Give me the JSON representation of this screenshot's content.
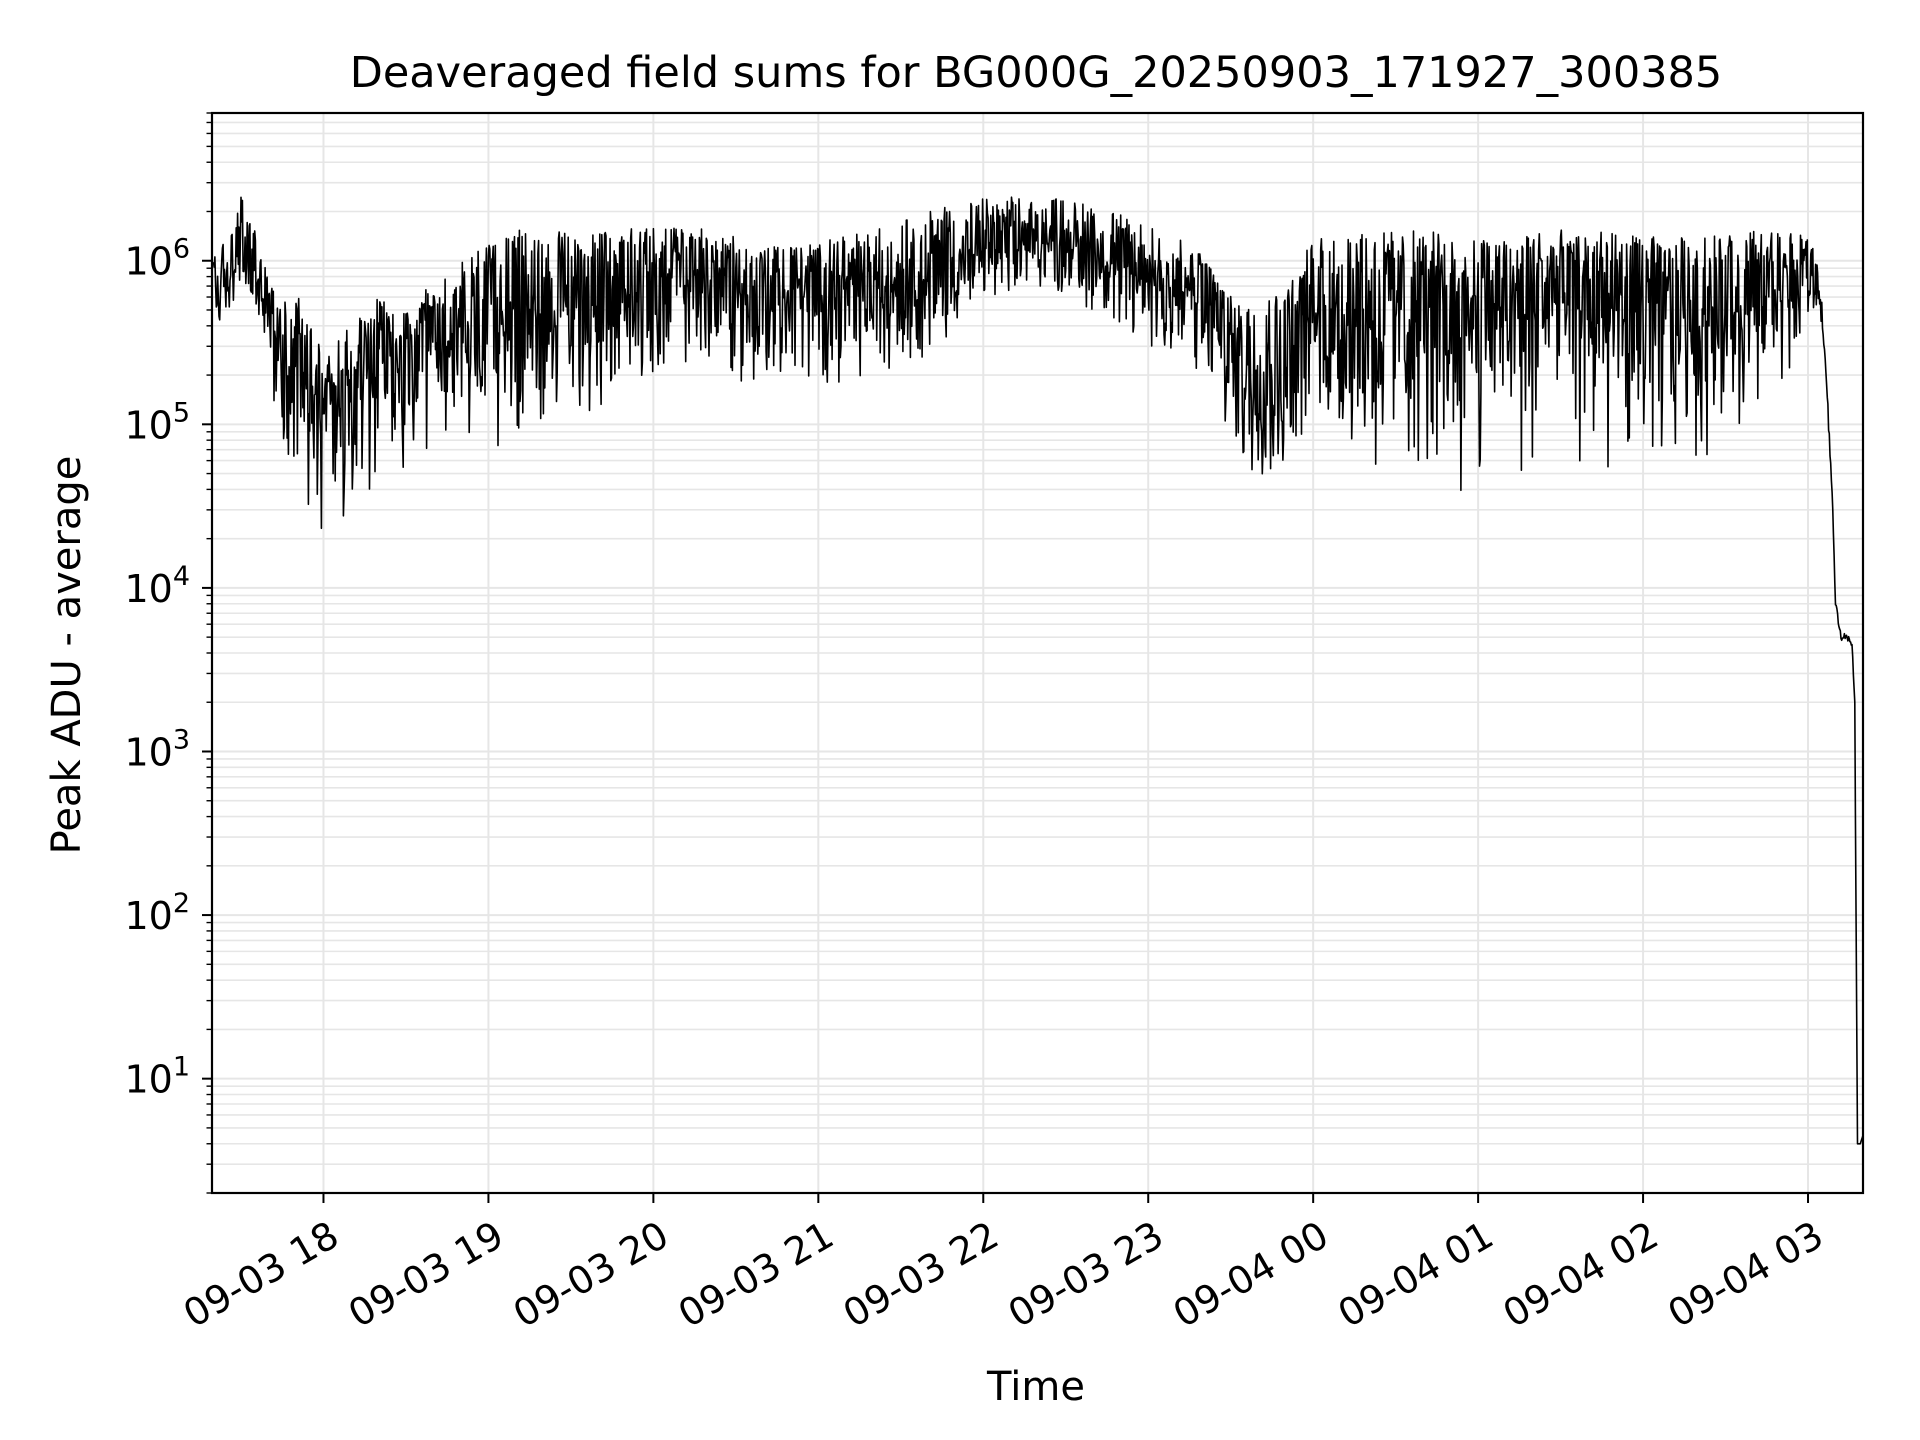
{
  "chart_data": {
    "type": "line",
    "title": "Deaveraged field sums for BG000G_20250903_171927_300385",
    "xlabel": "Time",
    "ylabel": "Peak ADU - average",
    "yscale": "log",
    "ylim": [
      2,
      8000000
    ],
    "xlim": [
      "2025-09-03 17:19:27",
      "2025-09-04 03:20:00"
    ],
    "grid": true,
    "line_color": "#000000",
    "grid_color": "#e6e6e6",
    "x_ticks": [
      {
        "value": "2025-09-03 18:00",
        "label": "09-03 18"
      },
      {
        "value": "2025-09-03 19:00",
        "label": "09-03 19"
      },
      {
        "value": "2025-09-03 20:00",
        "label": "09-03 20"
      },
      {
        "value": "2025-09-03 21:00",
        "label": "09-03 21"
      },
      {
        "value": "2025-09-03 22:00",
        "label": "09-03 22"
      },
      {
        "value": "2025-09-03 23:00",
        "label": "09-03 23"
      },
      {
        "value": "2025-09-04 00:00",
        "label": "09-04 00"
      },
      {
        "value": "2025-09-04 01:00",
        "label": "09-04 01"
      },
      {
        "value": "2025-09-04 02:00",
        "label": "09-04 02"
      },
      {
        "value": "2025-09-04 03:00",
        "label": "09-04 03"
      }
    ],
    "y_ticks": [
      {
        "value": 10,
        "base": "10",
        "exp": "1"
      },
      {
        "value": 100,
        "base": "10",
        "exp": "2"
      },
      {
        "value": 1000,
        "base": "10",
        "exp": "3"
      },
      {
        "value": 10000,
        "base": "10",
        "exp": "4"
      },
      {
        "value": 100000,
        "base": "10",
        "exp": "5"
      },
      {
        "value": 1000000,
        "base": "10",
        "exp": "6"
      }
    ],
    "series": [
      {
        "x": [
          "2025-09-03 17:20",
          "2025-09-03 17:25",
          "2025-09-03 17:30",
          "2025-09-03 17:35",
          "2025-09-03 17:40",
          "2025-09-03 17:45",
          "2025-09-03 17:50",
          "2025-09-03 17:55",
          "2025-09-03 18:00",
          "2025-09-03 18:10",
          "2025-09-03 18:20",
          "2025-09-03 18:30",
          "2025-09-03 18:40",
          "2025-09-03 18:50",
          "2025-09-03 19:00",
          "2025-09-03 19:10",
          "2025-09-03 19:20",
          "2025-09-03 19:40",
          "2025-09-03 20:00",
          "2025-09-03 20:20",
          "2025-09-03 20:40",
          "2025-09-03 21:00",
          "2025-09-03 21:20",
          "2025-09-03 21:40",
          "2025-09-03 22:00",
          "2025-09-03 22:20",
          "2025-09-03 22:40",
          "2025-09-03 23:00",
          "2025-09-03 23:10",
          "2025-09-03 23:20",
          "2025-09-03 23:30",
          "2025-09-03 23:40",
          "2025-09-03 23:50",
          "2025-09-04 00:00",
          "2025-09-04 00:20",
          "2025-09-04 00:40",
          "2025-09-04 01:00",
          "2025-09-04 01:20",
          "2025-09-04 01:40",
          "2025-09-04 02:00",
          "2025-09-04 02:20",
          "2025-09-04 02:40",
          "2025-09-04 02:55",
          "2025-09-04 03:00",
          "2025-09-04 03:03",
          "2025-09-04 03:05",
          "2025-09-04 03:07",
          "2025-09-04 03:09",
          "2025-09-04 03:10",
          "2025-09-04 03:12",
          "2025-09-04 03:14",
          "2025-09-04 03:16",
          "2025-09-04 03:17",
          "2025-09-04 03:18",
          "2025-09-04 03:19",
          "2025-09-04 03:20"
        ],
        "y": [
          700000,
          800000,
          1000000,
          900000,
          500000,
          300000,
          250000,
          200000,
          150000,
          200000,
          250000,
          220000,
          300000,
          350000,
          450000,
          550000,
          500000,
          600000,
          700000,
          800000,
          600000,
          650000,
          700000,
          800000,
          1200000,
          1400000,
          1100000,
          750000,
          700000,
          600000,
          300000,
          220000,
          250000,
          450000,
          500000,
          550000,
          450000,
          600000,
          550000,
          500000,
          500000,
          550000,
          800000,
          900000,
          800000,
          500000,
          150000,
          30000,
          8000,
          5000,
          5000,
          4500,
          2000,
          4,
          4,
          4.5
        ],
        "spread_low": [
          0.5,
          0.55,
          0.7,
          0.6,
          0.4,
          0.25,
          0.2,
          0.15,
          0.12,
          0.15,
          0.18,
          0.15,
          0.15,
          0.12,
          0.15,
          0.15,
          0.2,
          0.2,
          0.3,
          0.3,
          0.25,
          0.25,
          0.3,
          0.3,
          0.5,
          0.5,
          0.45,
          0.4,
          0.35,
          0.3,
          0.2,
          0.2,
          0.2,
          0.1,
          0.08,
          0.08,
          0.06,
          0.08,
          0.08,
          0.1,
          0.12,
          0.15,
          0.3,
          0.5,
          0.6,
          0.8,
          0.9,
          0.95,
          0.95,
          0.95,
          0.95,
          0.95,
          1,
          1,
          1,
          1
        ],
        "spread_high": [
          1.8,
          1.6,
          2.5,
          1.8,
          1.6,
          1.7,
          3,
          2,
          1.8,
          2,
          2.5,
          2.2,
          2.5,
          2.8,
          3,
          2.8,
          3,
          2.5,
          2.3,
          2,
          2,
          2,
          2.2,
          2.5,
          2,
          1.8,
          2,
          2.2,
          2,
          1.8,
          2.2,
          2.5,
          3,
          3,
          3,
          2.8,
          3,
          2.6,
          2.8,
          2.8,
          2.8,
          2.8,
          1.8,
          1.6,
          1.3,
          1.15,
          1.1,
          1.05,
          1.05,
          1.05,
          1.05,
          1.05,
          1,
          1,
          1,
          1
        ]
      }
    ]
  }
}
